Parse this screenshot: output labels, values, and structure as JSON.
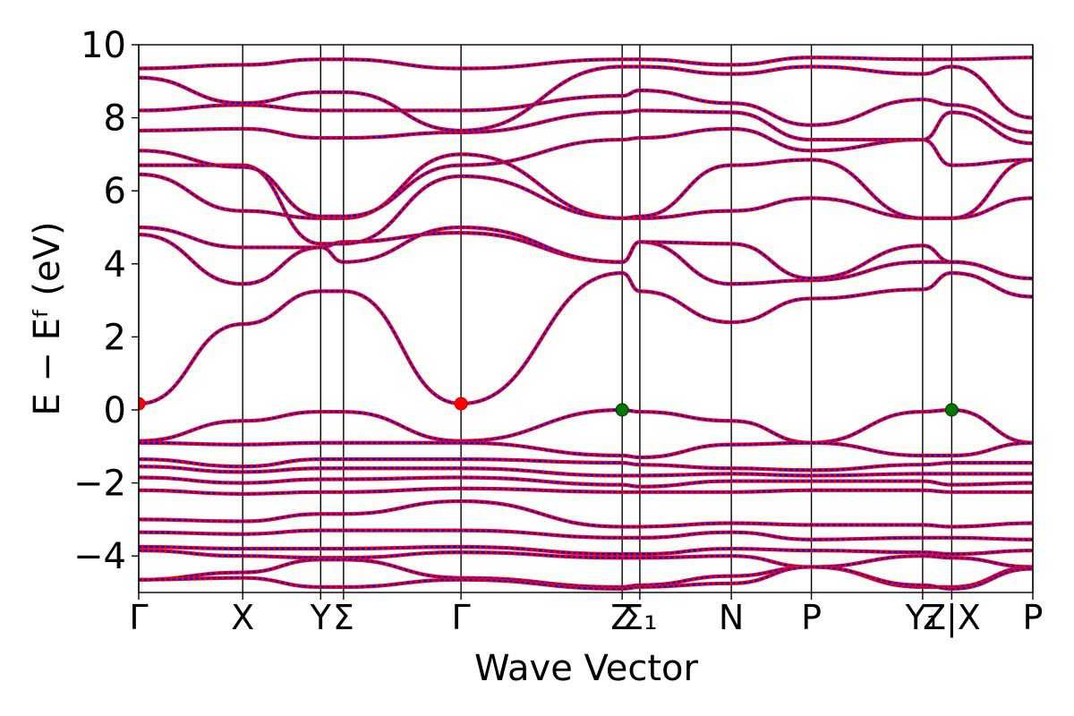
{
  "chart_data": {
    "type": "line",
    "xlabel": "Wave Vector",
    "ylabel": "E − Eᶠ (eV)",
    "ylim": [
      -5,
      10
    ],
    "yticks": [
      -4,
      -2,
      0,
      2,
      4,
      6,
      8,
      10
    ],
    "ytick_labels": [
      "−4",
      "−2",
      "0",
      "2",
      "4",
      "6",
      "8",
      "10"
    ],
    "kpoint_labels": [
      {
        "label": "Γ",
        "k": 0.0
      },
      {
        "label": "X",
        "k": 1.0
      },
      {
        "label": "Y",
        "k": 1.75
      },
      {
        "label": "Σ",
        "k": 1.97
      },
      {
        "label": "Γ",
        "k": 3.1
      },
      {
        "label": "Z",
        "k": 4.65
      },
      {
        "label": "Σ₁",
        "k": 4.82
      },
      {
        "label": "N",
        "k": 5.7
      },
      {
        "label": "P",
        "k": 6.47
      },
      {
        "label": "Y₁",
        "k": 7.54
      },
      {
        "label": "Z|X",
        "k": 7.82
      },
      {
        "label": "P",
        "k": 8.6
      }
    ],
    "xlim": [
      0,
      8.6
    ],
    "grid": false,
    "series_styles": {
      "primary": {
        "color": "#ff0000",
        "style": "solid"
      },
      "overlay": {
        "color": "#0000ff",
        "style": "dotted"
      }
    },
    "markers": [
      {
        "k": 0.0,
        "e": 0.17,
        "color": "#ff0000"
      },
      {
        "k": 3.1,
        "e": 0.17,
        "color": "#ff0000"
      },
      {
        "k": 4.65,
        "e": 0.0,
        "color": "#007700"
      },
      {
        "k": 7.82,
        "e": 0.0,
        "color": "#007700"
      }
    ],
    "bands": [
      {
        "k": [
          0,
          1,
          1.75,
          1.97,
          3.1,
          4.65,
          4.82,
          5.7,
          6.47,
          7.54,
          7.82,
          8.6
        ],
        "e": [
          0.17,
          2.35,
          3.25,
          3.25,
          0.17,
          3.75,
          3.25,
          2.4,
          3.05,
          3.3,
          3.75,
          3.1
        ]
      },
      {
        "k": [
          0,
          1,
          1.75,
          1.97,
          3.1,
          4.65,
          4.82,
          5.7,
          6.47,
          7.54,
          7.82,
          8.6
        ],
        "e": [
          4.8,
          3.45,
          4.45,
          4.6,
          4.85,
          4.05,
          4.6,
          3.45,
          3.55,
          4.05,
          4.05,
          3.6
        ]
      },
      {
        "k": [
          0,
          1,
          1.75,
          1.97,
          3.1,
          4.65,
          4.82,
          5.7,
          6.47,
          7.54,
          7.82,
          8.6
        ],
        "e": [
          5.0,
          4.45,
          4.45,
          4.05,
          5.0,
          4.05,
          4.6,
          4.55,
          3.6,
          4.5,
          4.05,
          3.6
        ]
      },
      {
        "k": [
          0,
          1,
          1.75,
          1.97,
          3.1,
          4.65,
          4.82,
          5.7,
          6.47,
          7.54,
          7.82,
          8.6
        ],
        "e": [
          6.45,
          5.45,
          5.25,
          5.25,
          7.0,
          5.25,
          5.25,
          5.45,
          5.8,
          5.25,
          5.25,
          5.8
        ]
      },
      {
        "k": [
          0,
          1,
          1.75,
          1.97,
          3.1,
          4.65,
          4.82,
          5.7,
          6.47,
          7.54,
          7.82,
          8.6
        ],
        "e": [
          6.7,
          6.7,
          4.55,
          4.55,
          6.4,
          5.25,
          5.3,
          6.7,
          6.85,
          5.25,
          5.25,
          6.85
        ]
      },
      {
        "k": [
          0,
          1,
          1.75,
          1.97,
          3.1,
          4.65,
          4.82,
          5.7,
          6.47,
          7.54,
          7.82,
          8.6
        ],
        "e": [
          7.1,
          6.65,
          5.3,
          5.3,
          6.7,
          7.4,
          7.45,
          7.7,
          7.1,
          7.4,
          6.7,
          6.85
        ]
      },
      {
        "k": [
          0,
          1,
          1.75,
          1.97,
          3.1,
          4.65,
          4.82,
          5.7,
          6.47,
          7.54,
          7.82,
          8.6
        ],
        "e": [
          7.65,
          7.7,
          7.45,
          7.45,
          7.6,
          8.15,
          8.2,
          8.15,
          7.4,
          7.4,
          8.15,
          7.3
        ]
      },
      {
        "k": [
          0,
          1,
          1.75,
          1.97,
          3.1,
          4.65,
          4.82,
          5.7,
          6.47,
          7.54,
          7.82,
          8.6
        ],
        "e": [
          8.2,
          8.35,
          8.2,
          8.2,
          8.2,
          8.6,
          8.75,
          8.4,
          7.8,
          8.5,
          8.35,
          7.6
        ]
      },
      {
        "k": [
          0,
          1,
          1.75,
          1.97,
          3.1,
          4.65,
          4.82,
          5.7,
          6.47,
          7.54,
          7.82,
          8.6
        ],
        "e": [
          9.1,
          8.4,
          8.7,
          8.7,
          7.65,
          9.4,
          9.4,
          9.2,
          9.4,
          9.2,
          9.4,
          8.0
        ]
      },
      {
        "k": [
          0,
          1,
          1.75,
          1.97,
          3.1,
          4.65,
          4.82,
          5.7,
          6.47,
          7.54,
          7.82,
          8.6
        ],
        "e": [
          9.35,
          9.45,
          9.6,
          9.6,
          9.35,
          9.6,
          9.6,
          9.45,
          9.65,
          9.6,
          9.6,
          9.65
        ]
      },
      {
        "k": [
          0,
          1,
          1.75,
          1.97,
          3.1,
          4.65,
          4.82,
          5.7,
          6.47,
          7.54,
          7.82,
          8.6
        ],
        "e": [
          -0.85,
          -0.3,
          -0.05,
          -0.05,
          -0.85,
          0.0,
          -0.05,
          -0.3,
          -0.9,
          -0.05,
          0.0,
          -0.9
        ]
      },
      {
        "k": [
          0,
          1,
          1.75,
          1.97,
          3.1,
          4.65,
          4.82,
          5.7,
          6.47,
          7.54,
          7.82,
          8.6
        ],
        "e": [
          -0.9,
          -0.95,
          -0.9,
          -0.9,
          -0.9,
          -1.25,
          -1.3,
          -0.95,
          -0.9,
          -1.25,
          -1.25,
          -0.9
        ]
      },
      {
        "k": [
          0,
          1,
          1.75,
          1.97,
          3.1,
          4.65,
          4.82,
          5.7,
          6.47,
          7.54,
          7.82,
          8.6
        ],
        "e": [
          -1.35,
          -1.55,
          -1.35,
          -1.35,
          -1.35,
          -1.45,
          -1.5,
          -1.6,
          -1.65,
          -1.5,
          -1.45,
          -1.45
        ]
      },
      {
        "k": [
          0,
          1,
          1.75,
          1.97,
          3.1,
          4.65,
          4.82,
          5.7,
          6.47,
          7.54,
          7.82,
          8.6
        ],
        "e": [
          -1.55,
          -1.7,
          -1.6,
          -1.6,
          -1.6,
          -1.8,
          -1.8,
          -1.75,
          -1.8,
          -1.75,
          -1.75,
          -1.75
        ]
      },
      {
        "k": [
          0,
          1,
          1.75,
          1.97,
          3.1,
          4.65,
          4.82,
          5.7,
          6.47,
          7.54,
          7.82,
          8.6
        ],
        "e": [
          -1.85,
          -2.0,
          -1.9,
          -1.9,
          -1.85,
          -2.05,
          -2.1,
          -1.95,
          -1.95,
          -1.95,
          -2.05,
          -2.0
        ]
      },
      {
        "k": [
          0,
          1,
          1.75,
          1.97,
          3.1,
          4.65,
          4.82,
          5.7,
          6.47,
          7.54,
          7.82,
          8.6
        ],
        "e": [
          -2.2,
          -2.3,
          -2.25,
          -2.25,
          -2.15,
          -2.25,
          -2.25,
          -2.25,
          -2.2,
          -2.2,
          -2.25,
          -2.25
        ]
      },
      {
        "k": [
          0,
          1,
          1.75,
          1.97,
          3.1,
          4.65,
          4.82,
          5.7,
          6.47,
          7.54,
          7.82,
          8.6
        ],
        "e": [
          -3.0,
          -3.05,
          -2.85,
          -2.85,
          -2.5,
          -3.2,
          -3.2,
          -3.1,
          -3.15,
          -3.15,
          -3.2,
          -3.1
        ]
      },
      {
        "k": [
          0,
          1,
          1.75,
          1.97,
          3.1,
          4.65,
          4.82,
          5.7,
          6.47,
          7.54,
          7.82,
          8.6
        ],
        "e": [
          -3.35,
          -3.4,
          -3.3,
          -3.3,
          -3.3,
          -3.5,
          -3.5,
          -3.35,
          -3.55,
          -3.5,
          -3.5,
          -3.55
        ]
      },
      {
        "k": [
          0,
          1,
          1.75,
          1.97,
          3.1,
          4.65,
          4.82,
          5.7,
          6.47,
          7.54,
          7.82,
          8.6
        ],
        "e": [
          -3.75,
          -3.8,
          -3.8,
          -3.8,
          -3.75,
          -3.95,
          -3.95,
          -3.8,
          -3.85,
          -3.9,
          -3.95,
          -3.85
        ]
      },
      {
        "k": [
          0,
          1,
          1.75,
          1.97,
          3.1,
          4.65,
          4.82,
          5.7,
          6.47,
          7.54,
          7.82,
          8.6
        ],
        "e": [
          -3.85,
          -4.0,
          -4.05,
          -4.05,
          -3.9,
          -4.05,
          -4.05,
          -4.0,
          -4.3,
          -4.0,
          -4.05,
          -4.3
        ]
      },
      {
        "k": [
          0,
          1,
          1.75,
          1.97,
          3.1,
          4.65,
          4.82,
          5.7,
          6.47,
          7.54,
          7.82,
          8.6
        ],
        "e": [
          -4.65,
          -4.45,
          -4.1,
          -4.1,
          -4.6,
          -4.85,
          -4.8,
          -4.55,
          -4.3,
          -4.85,
          -4.85,
          -4.3
        ]
      },
      {
        "k": [
          0,
          1,
          1.75,
          1.97,
          3.1,
          4.65,
          4.82,
          5.7,
          6.47,
          7.54,
          7.82,
          8.6
        ],
        "e": [
          -4.65,
          -4.6,
          -4.85,
          -4.85,
          -4.65,
          -4.9,
          -4.85,
          -4.75,
          -4.3,
          -4.8,
          -4.9,
          -4.35
        ]
      }
    ]
  }
}
